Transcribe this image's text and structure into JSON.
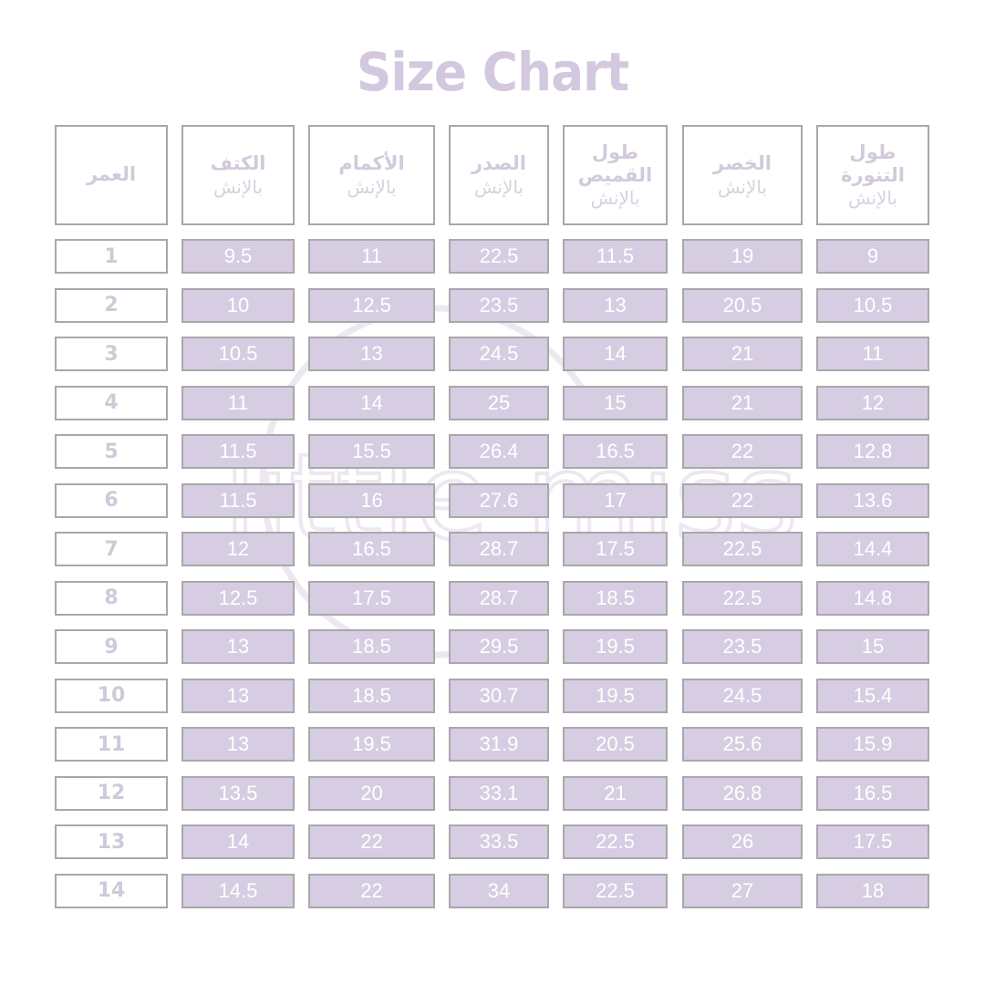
{
  "title": "Size Chart",
  "watermark": "little miss",
  "colors": {
    "cell_fill": "#d6cde2",
    "border": "#a9a7ab",
    "header_text": "#d2cadb",
    "value_text": "#ffffff"
  },
  "chart_data": {
    "type": "table",
    "title": "Size Chart",
    "columns": [
      {
        "label": "العمر",
        "unit": ""
      },
      {
        "label": "الكتف",
        "unit": "بالإنش"
      },
      {
        "label": "الأكمام",
        "unit": "بالإنش"
      },
      {
        "label": "الصدر",
        "unit": "بالإنش"
      },
      {
        "label": "طول القميص",
        "unit": "بالإنش"
      },
      {
        "label": "الخصر",
        "unit": "بالإنش"
      },
      {
        "label": "طول التنورة",
        "unit": "بالإنش"
      }
    ],
    "rows": [
      [
        "1",
        "9.5",
        "11",
        "22.5",
        "11.5",
        "19",
        "9"
      ],
      [
        "2",
        "10",
        "12.5",
        "23.5",
        "13",
        "20.5",
        "10.5"
      ],
      [
        "3",
        "10.5",
        "13",
        "24.5",
        "14",
        "21",
        "11"
      ],
      [
        "4",
        "11",
        "14",
        "25",
        "15",
        "21",
        "12"
      ],
      [
        "5",
        "11.5",
        "15.5",
        "26.4",
        "16.5",
        "22",
        "12.8"
      ],
      [
        "6",
        "11.5",
        "16",
        "27.6",
        "17",
        "22",
        "13.6"
      ],
      [
        "7",
        "12",
        "16.5",
        "28.7",
        "17.5",
        "22.5",
        "14.4"
      ],
      [
        "8",
        "12.5",
        "17.5",
        "28.7",
        "18.5",
        "22.5",
        "14.8"
      ],
      [
        "9",
        "13",
        "18.5",
        "29.5",
        "19.5",
        "23.5",
        "15"
      ],
      [
        "10",
        "13",
        "18.5",
        "30.7",
        "19.5",
        "24.5",
        "15.4"
      ],
      [
        "11",
        "13",
        "19.5",
        "31.9",
        "20.5",
        "25.6",
        "15.9"
      ],
      [
        "12",
        "13.5",
        "20",
        "33.1",
        "21",
        "26.8",
        "16.5"
      ],
      [
        "13",
        "14",
        "22",
        "33.5",
        "22.5",
        "26",
        "17.5"
      ],
      [
        "14",
        "14.5",
        "22",
        "34",
        "22.5",
        "27",
        "18"
      ]
    ]
  }
}
